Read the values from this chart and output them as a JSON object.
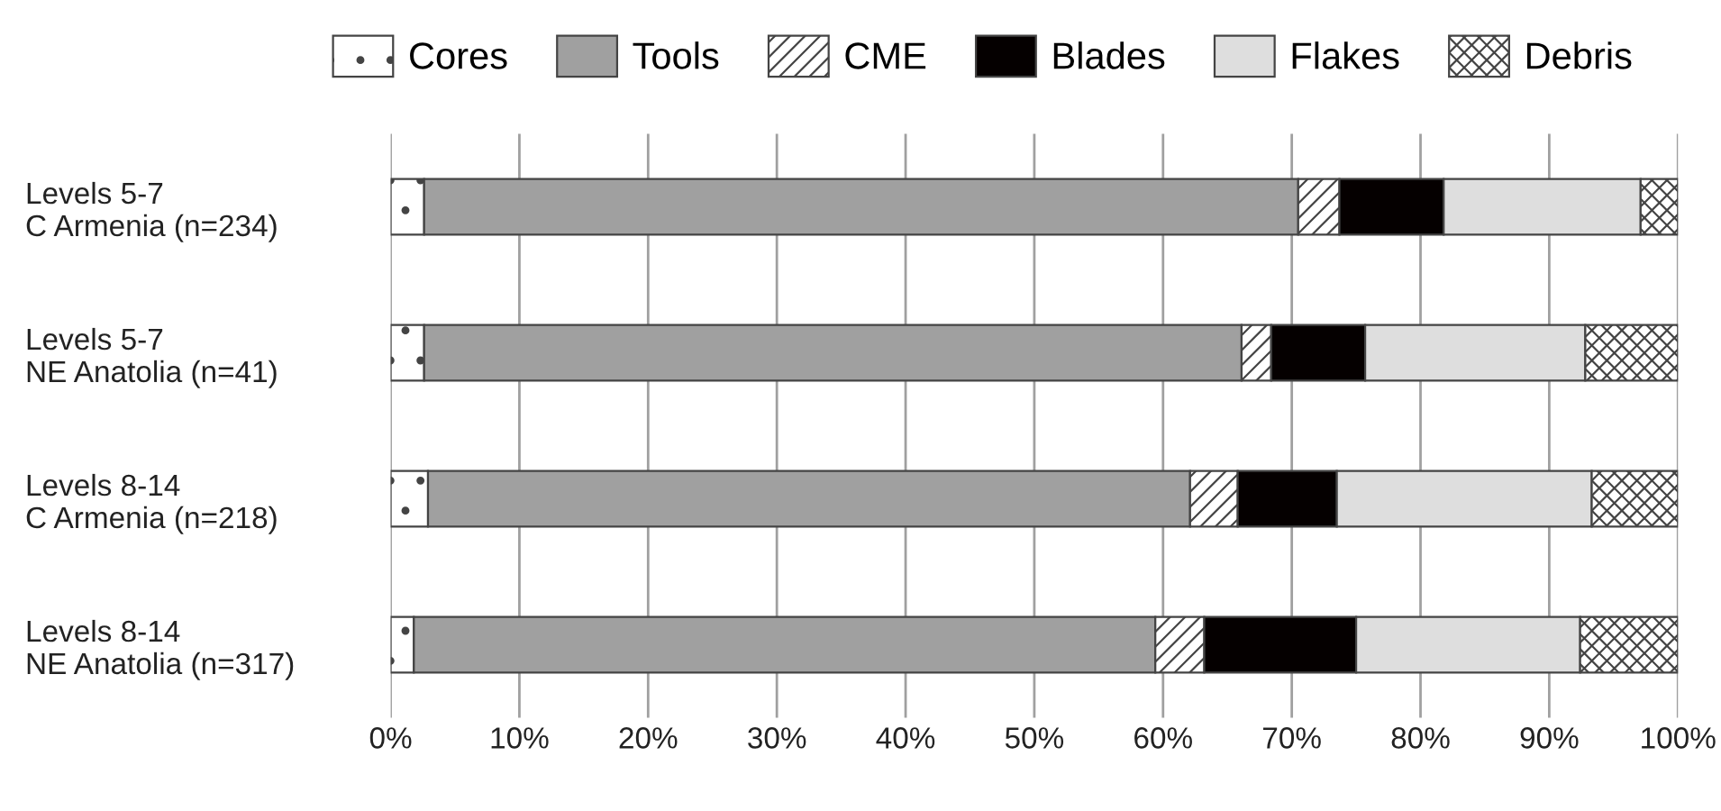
{
  "chart_data": {
    "type": "bar",
    "orientation": "horizontal",
    "stacked": true,
    "categories": [
      "Levels 5-7\nC Armenia (n=234)",
      "Levels 5-7\nNE Anatolia (n=41)",
      "Levels 8-14\nC Armenia (n=218)",
      "Levels 8-14\nNE Anatolia (n=317)"
    ],
    "series": [
      {
        "name": "Cores",
        "color": "#ffffff",
        "values": [
          2.6,
          2.6,
          2.9,
          1.8
        ]
      },
      {
        "name": "Tools",
        "color": "#a0a0a0",
        "values": [
          67.9,
          63.5,
          59.2,
          57.6
        ]
      },
      {
        "name": "CME",
        "color": "#ffffff",
        "values": [
          3.2,
          2.3,
          3.7,
          3.8
        ]
      },
      {
        "name": "Blades",
        "color": "#050000",
        "values": [
          8.1,
          7.3,
          7.7,
          11.8
        ]
      },
      {
        "name": "Flakes",
        "color": "#dedede",
        "values": [
          15.3,
          17.1,
          19.8,
          17.4
        ]
      },
      {
        "name": "Debris",
        "color": "#ffffff",
        "values": [
          2.9,
          7.2,
          6.7,
          7.6
        ]
      }
    ],
    "xlim": [
      0,
      100
    ],
    "xticks": [
      {
        "value": 0,
        "label": "0%"
      },
      {
        "value": 10,
        "label": "10%"
      },
      {
        "value": 20,
        "label": "20%"
      },
      {
        "value": 30,
        "label": "30%"
      },
      {
        "value": 40,
        "label": "40%"
      },
      {
        "value": 50,
        "label": "50%"
      },
      {
        "value": 60,
        "label": "60%"
      },
      {
        "value": 70,
        "label": "70%"
      },
      {
        "value": 80,
        "label": "80%"
      },
      {
        "value": 90,
        "label": "90%"
      },
      {
        "value": 100,
        "label": "100%"
      }
    ],
    "grid": "x",
    "legend": "top"
  }
}
